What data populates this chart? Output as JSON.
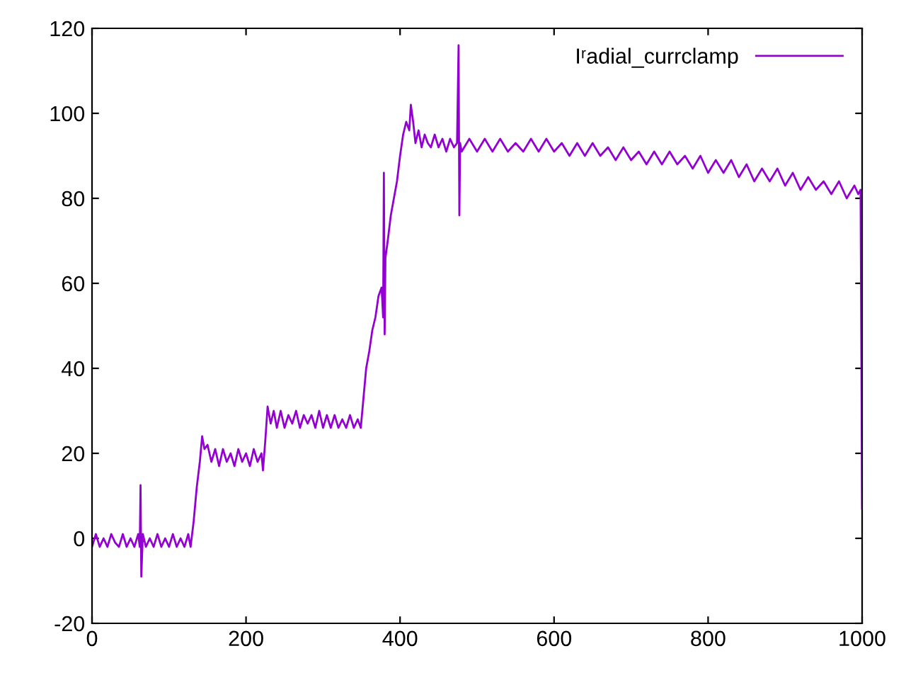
{
  "chart_data": {
    "type": "line",
    "xlim": [
      0,
      1000
    ],
    "ylim": [
      -20,
      120
    ],
    "xticks": [
      0,
      200,
      400,
      600,
      800,
      1000
    ],
    "yticks": [
      -20,
      0,
      20,
      40,
      60,
      80,
      100,
      120
    ],
    "grid": false,
    "legend": "top right",
    "series": [
      {
        "name": "Iʳadial_currclamp",
        "color": "#9400d3",
        "x": [
          0,
          5,
          10,
          15,
          20,
          25,
          30,
          35,
          40,
          45,
          50,
          55,
          60,
          62,
          63,
          64,
          66,
          70,
          75,
          80,
          85,
          90,
          95,
          100,
          105,
          110,
          115,
          120,
          125,
          128,
          132,
          136,
          140,
          143,
          146,
          150,
          155,
          160,
          165,
          170,
          175,
          180,
          185,
          190,
          195,
          200,
          205,
          210,
          215,
          220,
          222,
          225,
          228,
          232,
          236,
          240,
          245,
          250,
          255,
          260,
          265,
          270,
          275,
          280,
          285,
          290,
          295,
          300,
          305,
          310,
          315,
          320,
          325,
          330,
          335,
          340,
          345,
          349,
          352,
          356,
          360,
          364,
          368,
          372,
          376,
          378,
          379,
          380,
          381,
          384,
          388,
          392,
          396,
          400,
          404,
          408,
          412,
          414,
          417,
          420,
          424,
          428,
          432,
          436,
          440,
          445,
          450,
          455,
          460,
          465,
          470,
          474,
          476,
          477,
          478,
          480,
          490,
          500,
          510,
          520,
          530,
          540,
          550,
          560,
          570,
          580,
          590,
          600,
          610,
          620,
          630,
          640,
          650,
          660,
          670,
          680,
          690,
          700,
          710,
          720,
          730,
          740,
          750,
          760,
          770,
          780,
          790,
          800,
          810,
          820,
          830,
          840,
          850,
          860,
          870,
          880,
          890,
          900,
          910,
          920,
          930,
          940,
          950,
          960,
          970,
          980,
          990,
          995,
          998,
          1000
        ],
        "values": [
          -2,
          1,
          -2,
          0,
          -2,
          1,
          -1,
          -2,
          1,
          -2,
          0,
          -2,
          1,
          -2,
          12.5,
          -9,
          1,
          -2,
          0,
          -2,
          1,
          -2,
          0,
          -2,
          1,
          -2,
          0,
          -2,
          1,
          -2,
          4,
          12,
          18,
          24,
          21,
          22,
          18,
          21,
          17,
          21,
          18,
          20,
          17,
          21,
          18,
          20,
          17,
          21,
          18,
          20,
          16,
          23,
          31,
          27,
          30,
          26,
          30,
          26,
          29,
          27,
          30,
          26,
          29,
          27,
          29,
          26,
          30,
          26,
          29,
          26,
          29,
          26,
          28,
          26,
          29,
          26,
          28,
          26,
          32,
          40,
          44,
          49,
          52,
          57,
          59,
          52,
          86,
          48,
          66,
          70,
          76,
          80,
          84,
          90,
          95,
          98,
          96,
          102,
          98,
          93,
          96,
          92,
          95,
          93,
          92,
          95,
          92,
          94,
          91,
          94,
          92,
          93,
          116,
          76,
          93,
          91,
          94,
          91,
          94,
          91,
          94,
          91,
          93,
          91,
          94,
          91,
          94,
          91,
          93,
          90,
          93,
          90,
          93,
          90,
          92,
          89,
          92,
          89,
          91,
          88,
          91,
          88,
          91,
          88,
          90,
          87,
          90,
          86,
          89,
          86,
          89,
          85,
          88,
          84,
          87,
          84,
          87,
          83,
          86,
          82,
          85,
          82,
          84,
          81,
          84,
          80,
          83,
          81,
          82,
          7
        ]
      }
    ]
  }
}
